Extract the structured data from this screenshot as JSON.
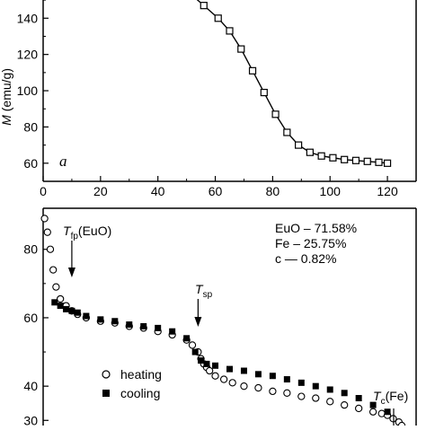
{
  "chart_data": [
    {
      "type": "line",
      "panel_label": "a",
      "ylabel_var": "M",
      "ylabel_unit": " (emu/g)",
      "xlim": [
        0,
        130
      ],
      "ylim": [
        50,
        155
      ],
      "xticks": [
        0,
        20,
        40,
        60,
        80,
        100,
        120
      ],
      "yticks": [
        60,
        80,
        100,
        120,
        140
      ],
      "marker": "open-square",
      "series": [
        {
          "x": [
            51,
            56,
            61,
            65,
            69,
            73,
            77,
            81,
            85,
            89,
            93,
            97,
            101,
            105,
            109,
            113,
            117,
            120
          ],
          "y": [
            154,
            147,
            140,
            133,
            123,
            111,
            99,
            87,
            77,
            70,
            66,
            64,
            63,
            62,
            61.5,
            61,
            60.5,
            60
          ]
        }
      ]
    },
    {
      "type": "scatter",
      "yticks": [
        30,
        40,
        60,
        80
      ],
      "ylim": [
        28.5,
        92
      ],
      "xlim": [
        0,
        130
      ],
      "composition": [
        "EuO – 71.58%",
        "Fe – 25.75%",
        "c — 0.82%"
      ],
      "annotations": {
        "tfp": {
          "main": "T",
          "sub": "fp",
          "suffix": "(EuO)",
          "x": 10
        },
        "tsp": {
          "main": "T",
          "sub": "sp",
          "x": 54
        },
        "tc": {
          "main": "T",
          "sub": "c",
          "suffix": "(Fe)",
          "x": 126
        }
      },
      "legend": [
        {
          "label": "heating",
          "marker": "open-circle"
        },
        {
          "label": "cooling",
          "marker": "filled-square"
        }
      ],
      "series": [
        {
          "label": "heating",
          "x": [
            0.5,
            1.5,
            2.5,
            3.5,
            4.5,
            6,
            8,
            10,
            12,
            15,
            20,
            25,
            30,
            35,
            40,
            45,
            50,
            52,
            54,
            55,
            56,
            57,
            58,
            60,
            63,
            66,
            70,
            75,
            80,
            85,
            90,
            95,
            100,
            105,
            110,
            115,
            118,
            120,
            122,
            124,
            125
          ],
          "y": [
            89,
            85,
            80,
            74,
            69,
            65.5,
            63.5,
            62,
            61,
            60,
            59,
            58.5,
            57.5,
            57,
            56,
            55,
            53.5,
            52,
            50,
            48,
            46.5,
            45.5,
            44.5,
            43,
            42,
            41,
            40,
            39.5,
            38.5,
            38,
            37,
            36.5,
            35.5,
            34.5,
            33.5,
            32.5,
            32,
            31.5,
            30.5,
            29.5,
            28.5
          ]
        },
        {
          "label": "cooling",
          "x": [
            4,
            6,
            8,
            10,
            12,
            15,
            20,
            25,
            30,
            35,
            40,
            45,
            50,
            53,
            55,
            57,
            60,
            65,
            70,
            75,
            80,
            85,
            90,
            95,
            100,
            105,
            110,
            115,
            120
          ],
          "y": [
            64.5,
            63.5,
            62.5,
            62,
            61.5,
            60.5,
            59.5,
            59,
            58,
            57.5,
            57,
            56,
            54,
            50,
            47.5,
            46.5,
            46,
            45,
            44.5,
            43.5,
            43,
            42,
            41,
            40,
            39,
            38,
            36.5,
            34.5,
            32.5
          ]
        }
      ]
    }
  ]
}
